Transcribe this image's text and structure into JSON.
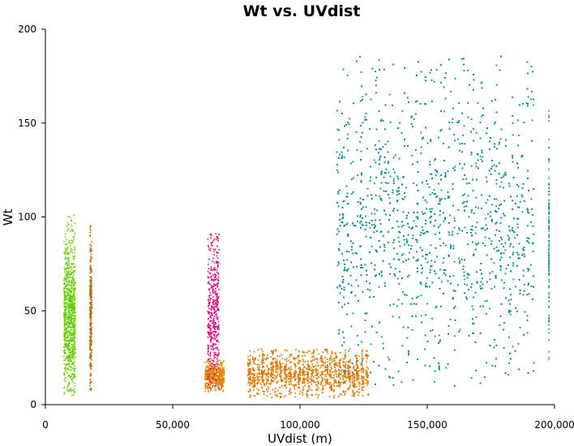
{
  "chart_data": {
    "type": "scatter",
    "title": "Wt vs. UVdist",
    "xlabel": "UVdist (m)",
    "ylabel": "Wt",
    "xlim": [
      0,
      200000
    ],
    "ylim": [
      0,
      200
    ],
    "x_ticks": [
      0,
      50000,
      100000,
      150000,
      200000
    ],
    "x_tick_labels": [
      "0",
      "50,000",
      "100,000",
      "150,000",
      "200,000"
    ],
    "y_ticks": [
      0,
      50,
      100,
      150,
      200
    ],
    "y_tick_labels": [
      "0",
      "50",
      "100",
      "150",
      "200"
    ],
    "grid": false,
    "legend": "none",
    "series": [
      {
        "color": "#66cc00",
        "x_range": [
          7000,
          11500
        ],
        "y_range": [
          5,
          90
        ],
        "outlier_y_max": 102,
        "points": 900
      },
      {
        "color": "#b36b00",
        "x_range": [
          17200,
          18000
        ],
        "y_range": [
          7,
          88
        ],
        "outlier_y_max": 96,
        "points": 260
      },
      {
        "color": "#e08000",
        "x_range": [
          62500,
          70000
        ],
        "y_range": [
          7,
          24
        ],
        "points": 500
      },
      {
        "color": "#dd0077",
        "x_range": [
          63500,
          68000
        ],
        "y_range": [
          8,
          92
        ],
        "points": 420
      },
      {
        "color": "#e07800",
        "x_range": [
          79000,
          127000
        ],
        "y_range": [
          4,
          30
        ],
        "points": 2600
      },
      {
        "color": "#008b99",
        "x_range": [
          114000,
          192000
        ],
        "y_range": [
          10,
          186
        ],
        "points": 7000
      },
      {
        "color": "#008b99",
        "x_range": [
          197500,
          197600
        ],
        "y_range": [
          18,
          157
        ],
        "points": 120
      }
    ]
  }
}
